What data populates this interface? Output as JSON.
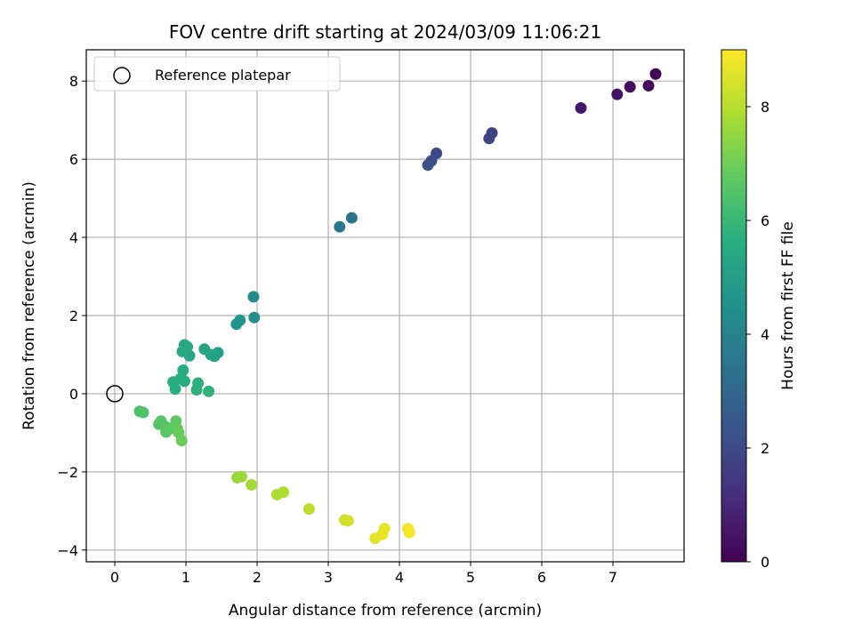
{
  "chart_data": {
    "type": "scatter",
    "title": "FOV centre drift starting at 2024/03/09 11:06:21",
    "xlabel": "Angular distance from reference (arcmin)",
    "ylabel": "Rotation from reference (arcmin)",
    "xlim": [
      -0.4,
      8.0
    ],
    "ylim": [
      -4.3,
      8.8
    ],
    "xticks": [
      0,
      1,
      2,
      3,
      4,
      5,
      6,
      7
    ],
    "yticks": [
      -4,
      -2,
      0,
      2,
      4,
      6,
      8
    ],
    "grid": true,
    "legend": {
      "position": "top-left",
      "entries": [
        "Reference platepar"
      ]
    },
    "reference_point": {
      "x": 0,
      "y": 0,
      "label": "Reference platepar"
    },
    "colormap": "viridis",
    "colorbar": {
      "label": "Hours from first FF file",
      "range": [
        0,
        9.0
      ],
      "ticks": [
        0,
        2,
        4,
        6,
        8
      ]
    },
    "series": [
      {
        "points": [
          {
            "x": 7.6,
            "y": 8.18,
            "c": 0.1
          },
          {
            "x": 7.5,
            "y": 7.88,
            "c": 0.2
          },
          {
            "x": 7.24,
            "y": 7.85,
            "c": 0.3
          },
          {
            "x": 7.06,
            "y": 7.66,
            "c": 0.45
          },
          {
            "x": 6.55,
            "y": 7.31,
            "c": 0.6
          },
          {
            "x": 5.3,
            "y": 6.67,
            "c": 1.7
          },
          {
            "x": 5.26,
            "y": 6.53,
            "c": 1.8
          },
          {
            "x": 4.52,
            "y": 6.15,
            "c": 2.0
          },
          {
            "x": 4.45,
            "y": 5.96,
            "c": 2.1
          },
          {
            "x": 4.4,
            "y": 5.85,
            "c": 2.2
          },
          {
            "x": 3.33,
            "y": 4.5,
            "c": 3.4
          },
          {
            "x": 3.16,
            "y": 4.27,
            "c": 3.6
          },
          {
            "x": 1.95,
            "y": 2.48,
            "c": 4.3
          },
          {
            "x": 1.96,
            "y": 1.95,
            "c": 4.4
          },
          {
            "x": 1.76,
            "y": 1.88,
            "c": 4.6
          },
          {
            "x": 1.71,
            "y": 1.78,
            "c": 4.7
          },
          {
            "x": 1.45,
            "y": 1.05,
            "c": 5.1
          },
          {
            "x": 1.4,
            "y": 0.96,
            "c": 5.15
          },
          {
            "x": 1.35,
            "y": 1.0,
            "c": 5.2
          },
          {
            "x": 1.26,
            "y": 1.14,
            "c": 5.25
          },
          {
            "x": 1.05,
            "y": 0.97,
            "c": 5.3
          },
          {
            "x": 1.02,
            "y": 1.2,
            "c": 5.35
          },
          {
            "x": 0.98,
            "y": 1.25,
            "c": 5.4
          },
          {
            "x": 0.95,
            "y": 1.08,
            "c": 5.45
          },
          {
            "x": 0.96,
            "y": 0.6,
            "c": 5.5
          },
          {
            "x": 0.98,
            "y": 0.32,
            "c": 5.55
          },
          {
            "x": 0.92,
            "y": 0.38,
            "c": 5.6
          },
          {
            "x": 0.82,
            "y": 0.3,
            "c": 5.6
          },
          {
            "x": 0.85,
            "y": 0.12,
            "c": 5.65
          },
          {
            "x": 1.17,
            "y": 0.27,
            "c": 5.7
          },
          {
            "x": 1.15,
            "y": 0.1,
            "c": 5.75
          },
          {
            "x": 1.32,
            "y": 0.06,
            "c": 5.8
          },
          {
            "x": 0.35,
            "y": -0.45,
            "c": 6.4
          },
          {
            "x": 0.4,
            "y": -0.48,
            "c": 6.45
          },
          {
            "x": 0.62,
            "y": -0.78,
            "c": 6.5
          },
          {
            "x": 0.65,
            "y": -0.7,
            "c": 6.55
          },
          {
            "x": 0.72,
            "y": -0.85,
            "c": 6.6
          },
          {
            "x": 0.72,
            "y": -0.98,
            "c": 6.65
          },
          {
            "x": 0.78,
            "y": -0.9,
            "c": 6.7
          },
          {
            "x": 0.86,
            "y": -0.7,
            "c": 6.75
          },
          {
            "x": 0.88,
            "y": -0.9,
            "c": 6.8
          },
          {
            "x": 0.9,
            "y": -1.0,
            "c": 6.85
          },
          {
            "x": 0.94,
            "y": -1.2,
            "c": 6.9
          },
          {
            "x": 1.72,
            "y": -2.15,
            "c": 7.6
          },
          {
            "x": 1.78,
            "y": -2.12,
            "c": 7.65
          },
          {
            "x": 1.92,
            "y": -2.33,
            "c": 7.75
          },
          {
            "x": 2.28,
            "y": -2.58,
            "c": 7.85
          },
          {
            "x": 2.37,
            "y": -2.52,
            "c": 7.9
          },
          {
            "x": 2.73,
            "y": -2.95,
            "c": 8.1
          },
          {
            "x": 3.23,
            "y": -3.23,
            "c": 8.35
          },
          {
            "x": 3.28,
            "y": -3.25,
            "c": 8.4
          },
          {
            "x": 3.66,
            "y": -3.7,
            "c": 8.6
          },
          {
            "x": 3.76,
            "y": -3.6,
            "c": 8.7
          },
          {
            "x": 3.79,
            "y": -3.45,
            "c": 8.75
          },
          {
            "x": 4.12,
            "y": -3.45,
            "c": 8.85
          },
          {
            "x": 4.14,
            "y": -3.55,
            "c": 8.9
          }
        ]
      }
    ]
  }
}
